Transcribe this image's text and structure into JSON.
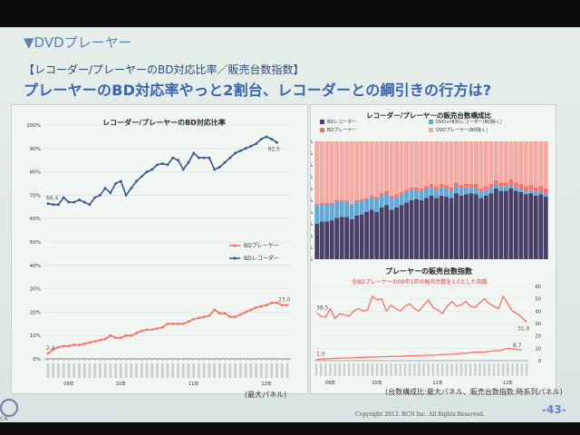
{
  "slide": {
    "section_title": "▼DVDプレーヤー",
    "subtitle": "【レコーダー/プレーヤーのBD対応比率／販売台数指数】",
    "headline": "プレーヤーのBD対応率やっと2割台、レコーダーとの綱引きの行方は?",
    "note_left": "(最大パネル)",
    "note_right": "(台数構成比:最大パネル、販売台数指数:時系列パネル)",
    "copyright": "Copyright 2012. BCN Inc. All Rights Reserved.",
    "page_number": "-43-",
    "logo_text": "CN",
    "colors": {
      "title_blue": "#5a7fb1",
      "headline_blue": "#3b63b3",
      "series_blue": "#34588f",
      "series_red": "#ff6f66"
    }
  },
  "chart_data": [
    {
      "type": "line",
      "title": "レコーダー/プレーヤーのBD対応比率",
      "y_ticks": [
        "0%",
        "10%",
        "20%",
        "30%",
        "40%",
        "50%",
        "60%",
        "70%",
        "80%",
        "90%",
        "100%"
      ],
      "ylim": [
        0,
        100
      ],
      "x_year_labels": [
        "09年",
        "10年",
        "11年",
        "12年"
      ],
      "legend_placement": "right",
      "series": [
        {
          "name": "BDプレーヤー",
          "color": "#ff6f66",
          "start_label": "2.4",
          "end_label": "23.0",
          "values": [
            2.4,
            4,
            5,
            5.5,
            5.5,
            6,
            6,
            6.5,
            7,
            7.5,
            8,
            8.5,
            10,
            9,
            9,
            10,
            10,
            11,
            12,
            12.5,
            12.5,
            13,
            13.5,
            15,
            15,
            15,
            15,
            16,
            17,
            17.5,
            18,
            18.5,
            21,
            19.5,
            19.5,
            18,
            18,
            19,
            20,
            21,
            22,
            22.5,
            23,
            24,
            24,
            23,
            23
          ]
        },
        {
          "name": "BDレコーダー",
          "color": "#34588f",
          "start_label": "66.4",
          "end_label": "92.5",
          "values": [
            66.4,
            66,
            66,
            69,
            67,
            67,
            68,
            67,
            66,
            69,
            70,
            73,
            71,
            75,
            76,
            70,
            73,
            76,
            78,
            80,
            81,
            83,
            83.5,
            83,
            86,
            85,
            81,
            84,
            88,
            86,
            86,
            86,
            81,
            82,
            84,
            86,
            88,
            89,
            90,
            91,
            92,
            94,
            95,
            94,
            92.5
          ]
        }
      ]
    },
    {
      "type": "bar",
      "title": "レコーダー/プレーヤーの販売台数構成比",
      "stacked": true,
      "y_ticks": [
        "0%",
        "10%",
        "20%",
        "30%",
        "40%",
        "50%",
        "60%",
        "70%",
        "80%",
        "90%",
        "100%"
      ],
      "ylim": [
        0,
        100
      ],
      "legend": [
        {
          "name": "BDレコーダー",
          "color": "#4a3f67"
        },
        {
          "name": "DVD+HDDレコーダー(BD除く)",
          "color": "#62a8d8"
        },
        {
          "name": "BDプレーヤー",
          "color": "#ff6f66"
        },
        {
          "name": "DVDプレーヤー(BD除く)",
          "color": "#f4a9a2"
        }
      ],
      "series": [
        {
          "name": "BDレコーダー",
          "values": [
            30,
            32,
            32,
            33,
            35,
            36,
            36,
            34,
            37,
            38,
            40,
            42,
            40,
            44,
            46,
            42,
            44,
            46,
            48,
            50,
            51,
            50,
            52,
            54,
            52,
            54,
            53,
            52,
            56,
            54,
            55,
            56,
            55,
            52,
            54,
            56,
            60,
            58,
            58,
            60,
            58,
            57,
            55,
            56,
            54,
            55,
            53
          ]
        },
        {
          "name": "DVD+HDDレコーダー(BD除く)",
          "values": [
            16,
            15,
            15,
            14,
            14,
            13,
            13,
            12,
            12,
            12,
            11,
            11,
            11,
            10,
            10,
            10,
            9,
            9,
            9,
            9,
            8,
            8,
            8,
            7,
            7,
            7,
            7,
            6,
            6,
            6,
            6,
            5,
            5,
            5,
            5,
            5,
            4,
            4,
            4,
            4,
            3,
            3,
            3,
            3,
            3,
            3,
            3
          ]
        },
        {
          "name": "BDプレーヤー",
          "values": [
            1,
            1,
            1,
            1,
            1,
            1,
            1,
            1,
            1,
            1,
            1,
            1,
            2,
            2,
            2,
            2,
            2,
            2,
            2,
            2,
            2,
            2,
            2,
            3,
            3,
            3,
            3,
            3,
            3,
            3,
            3,
            3,
            4,
            3,
            3,
            3,
            3,
            3,
            3,
            4,
            4,
            4,
            4,
            4,
            4,
            4,
            4
          ]
        }
      ]
    },
    {
      "type": "line",
      "title": "プレーヤーの販売台数指数",
      "annotation": "全BDプレーヤーの09年1月の販売台数を1.0とした指数",
      "y_ticks": [
        "0",
        "10",
        "20",
        "30",
        "40",
        "50",
        "60"
      ],
      "ylim": [
        0,
        60
      ],
      "x_year_labels": [
        "09年",
        "10年",
        "11年",
        "12年"
      ],
      "series": [
        {
          "name": "DVDプレーヤー",
          "color": "#ff6f66",
          "start_label": "38.5",
          "end_label": "31.0",
          "values": [
            38.5,
            36,
            35,
            42,
            34,
            38,
            37,
            36,
            40,
            42,
            40,
            41,
            52,
            49,
            50,
            40,
            45,
            42,
            40,
            44,
            46,
            42,
            40,
            45,
            49,
            43,
            41,
            38,
            44,
            48,
            44,
            45,
            48,
            44,
            43,
            47,
            50,
            46,
            44,
            42,
            52,
            46,
            40,
            38,
            35,
            31
          ]
        },
        {
          "name": "BDプレーヤー",
          "color": "#ff6f66",
          "start_label": "1.0",
          "end_label": "8.7",
          "values": [
            1,
            1.2,
            1.5,
            1.6,
            1.8,
            2,
            2.2,
            2.2,
            2.4,
            2.6,
            2.6,
            2.8,
            3,
            3,
            3.2,
            3.2,
            3.5,
            3.5,
            3.6,
            3.8,
            4,
            4,
            4.2,
            4.2,
            4.5,
            4.5,
            4.6,
            5,
            5,
            5.2,
            5.5,
            6,
            6,
            6.5,
            7,
            6.8,
            7,
            7.5,
            8,
            8,
            9,
            10,
            9.5,
            9,
            8.7
          ]
        }
      ]
    }
  ]
}
